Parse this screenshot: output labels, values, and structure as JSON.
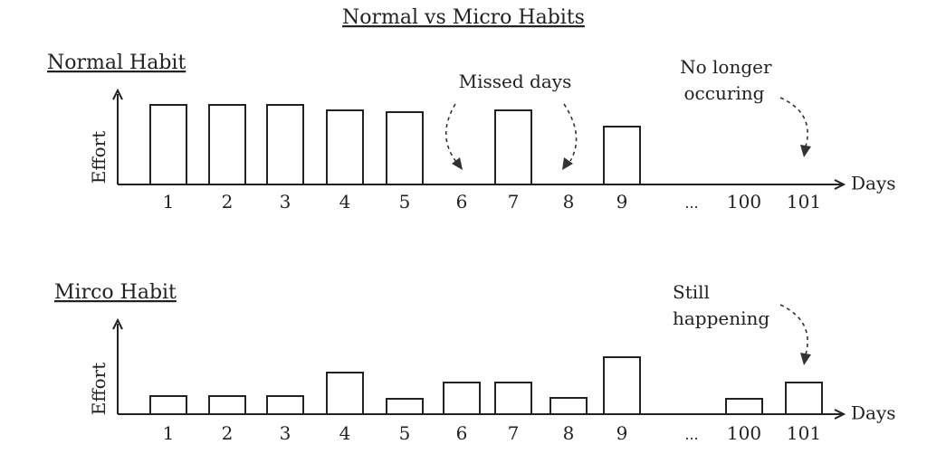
{
  "chart_data": {
    "title": "Normal vs Micro Habits",
    "type": "bar",
    "panels": [
      {
        "id": "normal",
        "label": "Normal Habit",
        "ylabel": "Effort",
        "xlabel": "Days",
        "categories": [
          "1",
          "2",
          "3",
          "4",
          "5",
          "6",
          "7",
          "8",
          "9",
          "...",
          "100",
          "101"
        ],
        "values": [
          88,
          88,
          88,
          82,
          80,
          0,
          82,
          0,
          64,
          null,
          0,
          0
        ],
        "ylim": [
          0,
          100
        ],
        "annotations": [
          {
            "text": "Missed days",
            "points_to": [
              "6",
              "8"
            ]
          },
          {
            "text_lines": [
              "No longer",
              "occuring"
            ],
            "points_to": [
              "101"
            ]
          }
        ]
      },
      {
        "id": "micro",
        "label": "Mirco Habit",
        "ylabel": "Effort",
        "xlabel": "Days",
        "categories": [
          "1",
          "2",
          "3",
          "4",
          "5",
          "6",
          "7",
          "8",
          "9",
          "...",
          "100",
          "101"
        ],
        "values": [
          20,
          20,
          20,
          46,
          17,
          35,
          35,
          18,
          63,
          null,
          17,
          35
        ],
        "ylim": [
          0,
          100
        ],
        "annotations": [
          {
            "text_lines": [
              "Still",
              "happening"
            ],
            "points_to": [
              "101"
            ]
          }
        ]
      }
    ]
  }
}
